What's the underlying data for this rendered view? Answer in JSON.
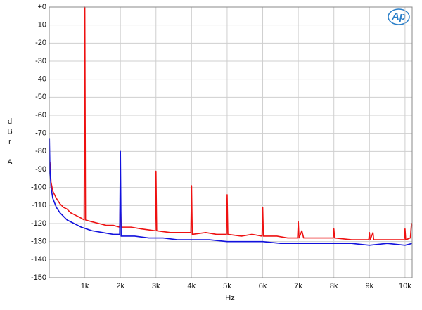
{
  "chart_data": {
    "type": "line",
    "logo": "Ap",
    "xlabel": "Hz",
    "ylabel": "dBr A",
    "xlim": [
      0,
      10200
    ],
    "ylim": [
      -150,
      0
    ],
    "xticks": [
      {
        "value": 1000,
        "label": "1k"
      },
      {
        "value": 2000,
        "label": "2k"
      },
      {
        "value": 3000,
        "label": "3k"
      },
      {
        "value": 4000,
        "label": "4k"
      },
      {
        "value": 5000,
        "label": "5k"
      },
      {
        "value": 6000,
        "label": "6k"
      },
      {
        "value": 7000,
        "label": "7k"
      },
      {
        "value": 8000,
        "label": "8k"
      },
      {
        "value": 9000,
        "label": "9k"
      },
      {
        "value": 10000,
        "label": "10k"
      }
    ],
    "yticks": [
      {
        "value": 0,
        "label": "+0"
      },
      -10,
      -20,
      -30,
      -40,
      -50,
      -60,
      -70,
      -80,
      -90,
      -100,
      -110,
      -120,
      -130,
      -140,
      -150
    ],
    "grid": true,
    "series": [
      {
        "color": "#ee1111",
        "x": [
          20,
          50,
          100,
          200,
          300,
          400,
          500,
          600,
          700,
          800,
          900,
          980,
          1000,
          1020,
          1200,
          1400,
          1600,
          1800,
          1980,
          2000,
          2020,
          2300,
          2600,
          2980,
          3000,
          3020,
          3400,
          3700,
          3980,
          4000,
          4020,
          4400,
          4700,
          4980,
          5000,
          5020,
          5400,
          5700,
          5980,
          6000,
          6020,
          6400,
          6700,
          6980,
          7000,
          7020,
          7100,
          7150,
          7500,
          7980,
          8000,
          8020,
          8500,
          8980,
          9000,
          9020,
          9100,
          9120,
          9500,
          9980,
          10000,
          10020,
          10150,
          10180,
          10200
        ],
        "values": [
          -86,
          -97,
          -102,
          -106,
          -109,
          -111,
          -112,
          -114,
          -115,
          -116,
          -117,
          -118,
          0,
          -118,
          -119,
          -120,
          -121,
          -121,
          -122,
          -104,
          -122,
          -122,
          -123,
          -124,
          -91,
          -124,
          -125,
          -125,
          -125,
          -99,
          -126,
          -125,
          -126,
          -126,
          -104,
          -126,
          -127,
          -126,
          -127,
          -111,
          -127,
          -127,
          -128,
          -128,
          -119,
          -128,
          -124,
          -128,
          -128,
          -128,
          -123,
          -128,
          -129,
          -129,
          -125,
          -129,
          -125,
          -129,
          -129,
          -129,
          -123,
          -129,
          -128,
          -120,
          -121
        ]
      },
      {
        "color": "#1111dd",
        "x": [
          5,
          20,
          50,
          100,
          200,
          300,
          400,
          500,
          700,
          900,
          1200,
          1500,
          1800,
          1980,
          2000,
          2020,
          2400,
          2800,
          3200,
          3600,
          4000,
          4500,
          5000,
          5500,
          6000,
          6500,
          7000,
          7500,
          8000,
          8500,
          9000,
          9500,
          10000,
          10200
        ],
        "values": [
          -73,
          -90,
          -100,
          -106,
          -111,
          -114,
          -116,
          -118,
          -120,
          -122,
          -124,
          -125,
          -126,
          -126,
          -80,
          -127,
          -127,
          -128,
          -128,
          -129,
          -129,
          -129,
          -130,
          -130,
          -130,
          -131,
          -131,
          -131,
          -131,
          -131,
          -132,
          -131,
          -132,
          -131
        ]
      }
    ]
  }
}
